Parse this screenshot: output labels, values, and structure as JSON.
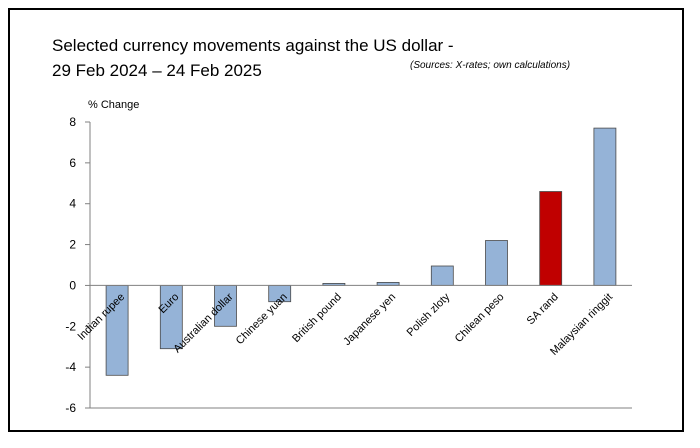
{
  "chart_data": {
    "type": "bar",
    "title_line1": "Selected currency movements against   the US dollar -",
    "title_line2": "29 Feb 2024  – 24 Feb 2025",
    "source": "(Sources: X-rates; own calculations)",
    "ylabel": "% Change",
    "xlabel": "",
    "ylim": [
      -6,
      8
    ],
    "yticks": [
      8,
      6,
      4,
      2,
      0,
      -2,
      -4,
      -6
    ],
    "grid": false,
    "categories": [
      "Indian rupee",
      "Euro",
      "Australian dollar",
      "Chinese yuan",
      "British pound",
      "Japanese yen",
      "Polish zloty",
      "Chilean peso",
      "SA rand",
      "Malaysian ringgit"
    ],
    "values": [
      -4.4,
      -3.1,
      -2.0,
      -0.8,
      0.1,
      0.15,
      0.95,
      2.2,
      4.6,
      7.7
    ],
    "colors": {
      "default": "#95b3d7",
      "highlight": "#c00000",
      "highlight_category": "SA rand"
    }
  }
}
